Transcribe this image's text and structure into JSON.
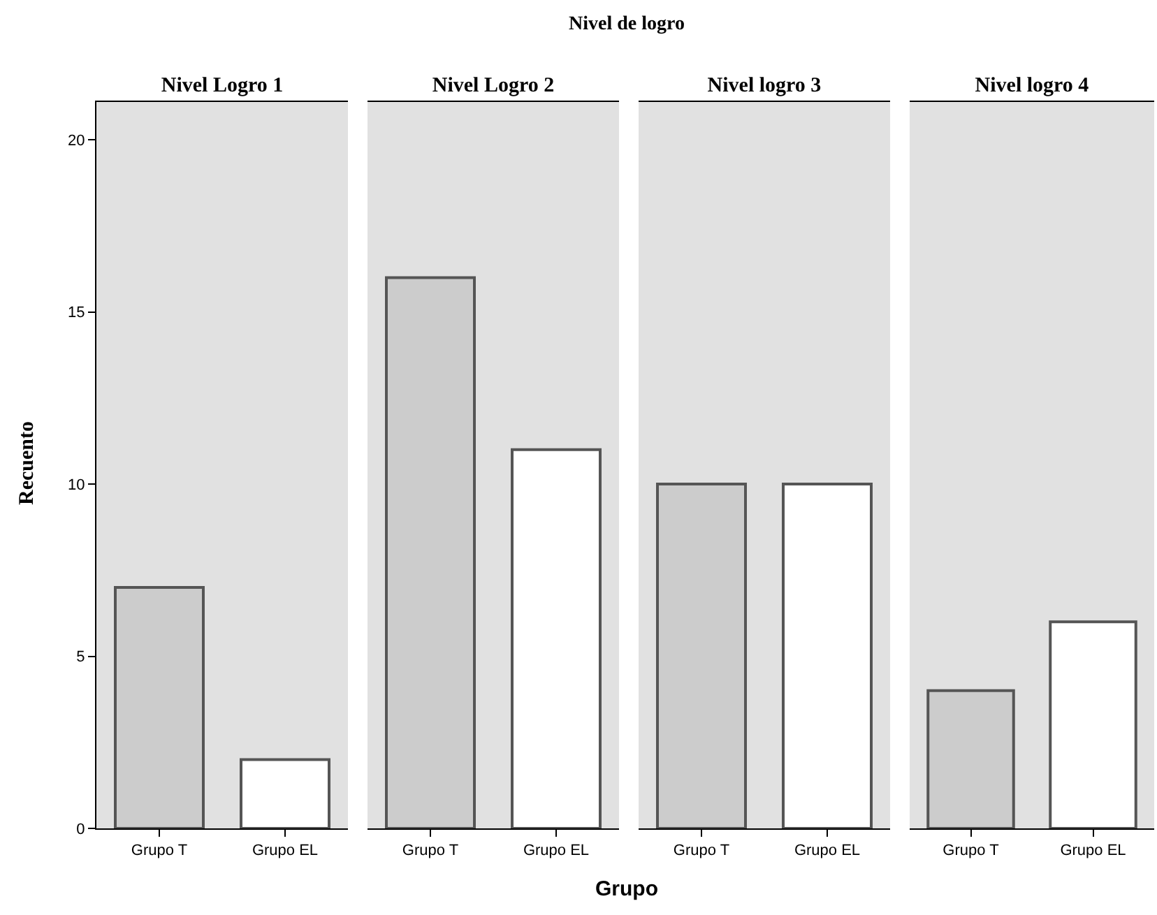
{
  "chart_data": [
    {
      "type": "bar",
      "title": "Nivel Logro 1",
      "annotations": [
        "Nivel de logro",
        "Grupo"
      ],
      "ylabel": "Recuento",
      "categories": [
        "Grupo T",
        "Grupo EL"
      ],
      "values": [
        7,
        2
      ],
      "colors": [
        "#cccccc",
        "#ffffff"
      ],
      "ylim": [
        0,
        21.1
      ],
      "yticks": [
        0,
        5,
        10,
        15,
        20
      ],
      "grid": false,
      "legend": false
    },
    {
      "type": "bar",
      "title": "Nivel Logro 2",
      "categories": [
        "Grupo T",
        "Grupo EL"
      ],
      "values": [
        16,
        11
      ],
      "colors": [
        "#cccccc",
        "#ffffff"
      ],
      "ylim": [
        0,
        21.1
      ],
      "yticks": [
        0,
        5,
        10,
        15,
        20
      ],
      "grid": false,
      "legend": false,
      "tick_labels": "x"
    },
    {
      "type": "bar",
      "title": "Nivel logro 3",
      "categories": [
        "Grupo T",
        "Grupo EL"
      ],
      "values": [
        10,
        10
      ],
      "colors": [
        "#cccccc",
        "#ffffff"
      ],
      "ylim": [
        0,
        21.1
      ],
      "yticks": [
        0,
        5,
        10,
        15,
        20
      ],
      "grid": false,
      "legend": false,
      "tick_labels": "x"
    },
    {
      "type": "bar",
      "title": "Nivel logro 4",
      "categories": [
        "Grupo T",
        "Grupo EL"
      ],
      "values": [
        4,
        6
      ],
      "colors": [
        "#cccccc",
        "#ffffff"
      ],
      "ylim": [
        0,
        21.1
      ],
      "yticks": [
        0,
        5,
        10,
        15,
        20
      ],
      "grid": false,
      "legend": false,
      "tick_labels": "x"
    }
  ]
}
